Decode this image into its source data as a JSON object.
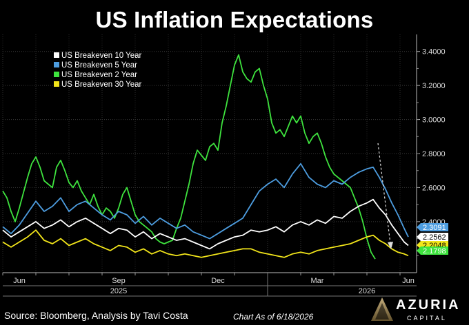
{
  "chart_data": {
    "type": "line",
    "title": "US Inflation Expectations",
    "xlabel": "",
    "ylabel": "",
    "x_tick_labels": [
      "Jun",
      "Sep",
      "Dec",
      "Mar",
      "Jun"
    ],
    "x_year_labels": [
      "2025",
      "2026"
    ],
    "y_tick_labels": [
      "2.4000",
      "2.6000",
      "2.8000",
      "3.0000",
      "3.2000",
      "3.4000"
    ],
    "yticks": [
      2.4,
      2.6,
      2.8,
      3.0,
      3.2,
      3.4
    ],
    "ylim": [
      2.1,
      3.5
    ],
    "xlim": [
      0,
      100
    ],
    "grid": true,
    "legend_position": "top-left",
    "series": [
      {
        "name": "US Breakeven 10 Year",
        "color": "#ffffff",
        "last_value_label": "2.2562",
        "values": [
          [
            0,
            2.35
          ],
          [
            2,
            2.31
          ],
          [
            4,
            2.34
          ],
          [
            6,
            2.37
          ],
          [
            8,
            2.4
          ],
          [
            10,
            2.36
          ],
          [
            12,
            2.38
          ],
          [
            14,
            2.41
          ],
          [
            16,
            2.37
          ],
          [
            18,
            2.4
          ],
          [
            20,
            2.42
          ],
          [
            22,
            2.39
          ],
          [
            24,
            2.36
          ],
          [
            26,
            2.33
          ],
          [
            28,
            2.36
          ],
          [
            30,
            2.35
          ],
          [
            32,
            2.31
          ],
          [
            34,
            2.34
          ],
          [
            36,
            2.3
          ],
          [
            38,
            2.33
          ],
          [
            40,
            2.31
          ],
          [
            42,
            2.29
          ],
          [
            44,
            2.3
          ],
          [
            46,
            2.28
          ],
          [
            48,
            2.26
          ],
          [
            50,
            2.24
          ],
          [
            52,
            2.27
          ],
          [
            54,
            2.29
          ],
          [
            56,
            2.31
          ],
          [
            58,
            2.32
          ],
          [
            60,
            2.35
          ],
          [
            62,
            2.34
          ],
          [
            64,
            2.35
          ],
          [
            66,
            2.37
          ],
          [
            68,
            2.34
          ],
          [
            70,
            2.38
          ],
          [
            72,
            2.4
          ],
          [
            74,
            2.38
          ],
          [
            76,
            2.41
          ],
          [
            78,
            2.39
          ],
          [
            80,
            2.43
          ],
          [
            82,
            2.42
          ],
          [
            84,
            2.46
          ],
          [
            86,
            2.49
          ],
          [
            88,
            2.51
          ],
          [
            89.5,
            2.53
          ],
          [
            91,
            2.48
          ],
          [
            92.5,
            2.44
          ],
          [
            94,
            2.38
          ],
          [
            95.5,
            2.33
          ],
          [
            97,
            2.28
          ],
          [
            98,
            2.26
          ]
        ]
      },
      {
        "name": "US Breakeven 5 Year",
        "color": "#4d9de0",
        "last_value_label": "2.3091",
        "values": [
          [
            0,
            2.37
          ],
          [
            2,
            2.33
          ],
          [
            4,
            2.38
          ],
          [
            6,
            2.45
          ],
          [
            8,
            2.52
          ],
          [
            10,
            2.46
          ],
          [
            12,
            2.49
          ],
          [
            14,
            2.54
          ],
          [
            16,
            2.46
          ],
          [
            18,
            2.5
          ],
          [
            20,
            2.52
          ],
          [
            22,
            2.48
          ],
          [
            24,
            2.44
          ],
          [
            26,
            2.41
          ],
          [
            28,
            2.46
          ],
          [
            30,
            2.44
          ],
          [
            32,
            2.39
          ],
          [
            34,
            2.43
          ],
          [
            36,
            2.38
          ],
          [
            38,
            2.42
          ],
          [
            40,
            2.39
          ],
          [
            42,
            2.36
          ],
          [
            44,
            2.38
          ],
          [
            46,
            2.34
          ],
          [
            48,
            2.32
          ],
          [
            50,
            2.3
          ],
          [
            52,
            2.33
          ],
          [
            54,
            2.36
          ],
          [
            56,
            2.39
          ],
          [
            58,
            2.42
          ],
          [
            60,
            2.5
          ],
          [
            62,
            2.58
          ],
          [
            64,
            2.62
          ],
          [
            66,
            2.65
          ],
          [
            68,
            2.6
          ],
          [
            70,
            2.68
          ],
          [
            72,
            2.74
          ],
          [
            74,
            2.66
          ],
          [
            76,
            2.62
          ],
          [
            78,
            2.6
          ],
          [
            80,
            2.64
          ],
          [
            82,
            2.62
          ],
          [
            84,
            2.66
          ],
          [
            86,
            2.69
          ],
          [
            88,
            2.71
          ],
          [
            89.5,
            2.72
          ],
          [
            91,
            2.66
          ],
          [
            92.5,
            2.59
          ],
          [
            94,
            2.51
          ],
          [
            95.5,
            2.44
          ],
          [
            97,
            2.36
          ],
          [
            98,
            2.31
          ]
        ]
      },
      {
        "name": "US Breakeven 2 Year",
        "color": "#3ee33e",
        "last_value_label": "2.1798",
        "values": [
          [
            0,
            2.58
          ],
          [
            1,
            2.54
          ],
          [
            2,
            2.46
          ],
          [
            3,
            2.4
          ],
          [
            4,
            2.48
          ],
          [
            5,
            2.57
          ],
          [
            6,
            2.66
          ],
          [
            7,
            2.74
          ],
          [
            8,
            2.78
          ],
          [
            9,
            2.72
          ],
          [
            10,
            2.64
          ],
          [
            11,
            2.62
          ],
          [
            12,
            2.6
          ],
          [
            13,
            2.72
          ],
          [
            14,
            2.76
          ],
          [
            15,
            2.7
          ],
          [
            16,
            2.63
          ],
          [
            17,
            2.6
          ],
          [
            18,
            2.64
          ],
          [
            19,
            2.58
          ],
          [
            20,
            2.54
          ],
          [
            21,
            2.5
          ],
          [
            22,
            2.56
          ],
          [
            23,
            2.49
          ],
          [
            24,
            2.44
          ],
          [
            25,
            2.48
          ],
          [
            26,
            2.46
          ],
          [
            27,
            2.42
          ],
          [
            28,
            2.48
          ],
          [
            29,
            2.56
          ],
          [
            30,
            2.6
          ],
          [
            31,
            2.52
          ],
          [
            32,
            2.44
          ],
          [
            33,
            2.4
          ],
          [
            34,
            2.38
          ],
          [
            35,
            2.36
          ],
          [
            36,
            2.34
          ],
          [
            37,
            2.3
          ],
          [
            38,
            2.28
          ],
          [
            39,
            2.27
          ],
          [
            40,
            2.28
          ],
          [
            41,
            2.29
          ],
          [
            42,
            2.36
          ],
          [
            43,
            2.42
          ],
          [
            44,
            2.52
          ],
          [
            45,
            2.62
          ],
          [
            46,
            2.74
          ],
          [
            47,
            2.82
          ],
          [
            48,
            2.79
          ],
          [
            49,
            2.76
          ],
          [
            50,
            2.84
          ],
          [
            51,
            2.86
          ],
          [
            52,
            2.82
          ],
          [
            53,
            2.98
          ],
          [
            54,
            3.08
          ],
          [
            55,
            3.2
          ],
          [
            56,
            3.32
          ],
          [
            57,
            3.38
          ],
          [
            58,
            3.28
          ],
          [
            59,
            3.24
          ],
          [
            60,
            3.22
          ],
          [
            61,
            3.28
          ],
          [
            62,
            3.3
          ],
          [
            63,
            3.2
          ],
          [
            64,
            3.12
          ],
          [
            65,
            2.98
          ],
          [
            66,
            2.92
          ],
          [
            67,
            2.94
          ],
          [
            68,
            2.9
          ],
          [
            69,
            2.96
          ],
          [
            70,
            3.02
          ],
          [
            71,
            2.98
          ],
          [
            72,
            3.02
          ],
          [
            73,
            2.92
          ],
          [
            74,
            2.86
          ],
          [
            75,
            2.9
          ],
          [
            76,
            2.92
          ],
          [
            77,
            2.86
          ],
          [
            78,
            2.78
          ],
          [
            79,
            2.72
          ],
          [
            80,
            2.68
          ],
          [
            81,
            2.66
          ],
          [
            82,
            2.64
          ],
          [
            83,
            2.62
          ],
          [
            84,
            2.6
          ],
          [
            85,
            2.54
          ],
          [
            86,
            2.48
          ],
          [
            87,
            2.4
          ],
          [
            88,
            2.3
          ],
          [
            89,
            2.22
          ],
          [
            90,
            2.18
          ]
        ]
      },
      {
        "name": "US Breakeven 30 Year",
        "color": "#f2e51a",
        "last_value_label": "2.2048",
        "values": [
          [
            0,
            2.28
          ],
          [
            2,
            2.25
          ],
          [
            4,
            2.28
          ],
          [
            6,
            2.31
          ],
          [
            8,
            2.35
          ],
          [
            10,
            2.29
          ],
          [
            12,
            2.27
          ],
          [
            14,
            2.3
          ],
          [
            16,
            2.26
          ],
          [
            18,
            2.28
          ],
          [
            20,
            2.3
          ],
          [
            22,
            2.27
          ],
          [
            24,
            2.25
          ],
          [
            26,
            2.23
          ],
          [
            28,
            2.26
          ],
          [
            30,
            2.25
          ],
          [
            32,
            2.22
          ],
          [
            34,
            2.24
          ],
          [
            36,
            2.21
          ],
          [
            38,
            2.23
          ],
          [
            40,
            2.21
          ],
          [
            42,
            2.2
          ],
          [
            44,
            2.21
          ],
          [
            46,
            2.2
          ],
          [
            48,
            2.19
          ],
          [
            50,
            2.2
          ],
          [
            52,
            2.21
          ],
          [
            54,
            2.22
          ],
          [
            56,
            2.23
          ],
          [
            58,
            2.24
          ],
          [
            60,
            2.24
          ],
          [
            62,
            2.22
          ],
          [
            64,
            2.21
          ],
          [
            66,
            2.2
          ],
          [
            68,
            2.19
          ],
          [
            70,
            2.21
          ],
          [
            72,
            2.22
          ],
          [
            74,
            2.21
          ],
          [
            76,
            2.23
          ],
          [
            78,
            2.24
          ],
          [
            80,
            2.25
          ],
          [
            82,
            2.26
          ],
          [
            84,
            2.27
          ],
          [
            86,
            2.29
          ],
          [
            88,
            2.31
          ],
          [
            89.5,
            2.32
          ],
          [
            91,
            2.29
          ],
          [
            92.5,
            2.27
          ],
          [
            94,
            2.24
          ],
          [
            95.5,
            2.22
          ],
          [
            97,
            2.21
          ],
          [
            98,
            2.2
          ]
        ]
      }
    ]
  },
  "footer": {
    "source": "Source: Bloomberg, Analysis by Tavi Costa",
    "date": "Chart As of 6/18/2026"
  },
  "brand": {
    "name": "AZURIA",
    "sub": "CAPITAL"
  }
}
